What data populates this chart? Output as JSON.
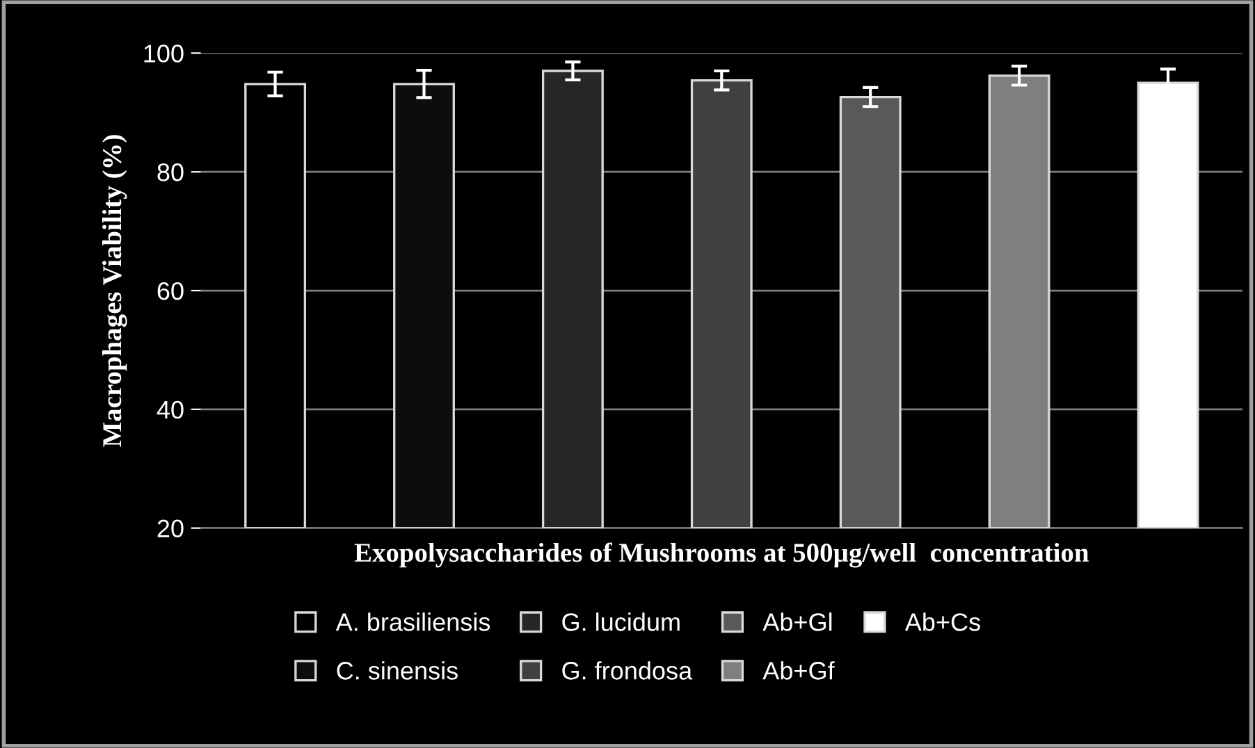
{
  "chart_data": {
    "type": "bar",
    "xlabel": "Exopolysaccharides of Mushrooms at 500µg/well  concentration",
    "ylabel": "Macrophages Viability (%)",
    "categories": [
      null,
      null,
      null,
      null,
      null,
      null,
      null
    ],
    "series": [
      {
        "name": "A. brasiliensis",
        "color": "#000000",
        "values": [
          94.8,
          null,
          null,
          null,
          null,
          null,
          null
        ],
        "errors": [
          2.0,
          null,
          null,
          null,
          null,
          null,
          null
        ]
      },
      {
        "name": "C. sinensis",
        "color": "#0d0d0d",
        "values": [
          null,
          94.8,
          null,
          null,
          null,
          null,
          null
        ],
        "errors": [
          null,
          2.3,
          null,
          null,
          null,
          null,
          null
        ]
      },
      {
        "name": "G. lucidum",
        "color": "#262626",
        "values": [
          null,
          null,
          97.0,
          null,
          null,
          null,
          null
        ],
        "errors": [
          null,
          null,
          1.5,
          null,
          null,
          null,
          null
        ]
      },
      {
        "name": "G. frondosa",
        "color": "#404040",
        "values": [
          null,
          null,
          null,
          95.4,
          null,
          null,
          null
        ],
        "errors": [
          null,
          null,
          null,
          1.6,
          null,
          null,
          null
        ]
      },
      {
        "name": "Ab+Gl",
        "color": "#595959",
        "values": [
          null,
          null,
          null,
          null,
          92.6,
          null,
          null
        ],
        "errors": [
          null,
          null,
          null,
          null,
          1.6,
          null,
          null
        ]
      },
      {
        "name": "Ab+Gf",
        "color": "#7f7f7f",
        "values": [
          null,
          null,
          null,
          null,
          null,
          96.2,
          null
        ],
        "errors": [
          null,
          null,
          null,
          null,
          null,
          1.6,
          null
        ]
      },
      {
        "name": "Ab+Cs",
        "color": "#ffffff",
        "values": [
          null,
          null,
          null,
          null,
          null,
          null,
          95.0
        ],
        "errors": [
          null,
          null,
          null,
          null,
          null,
          null,
          2.3
        ]
      }
    ],
    "ylim": [
      20,
      100
    ],
    "yticks": [
      20,
      40,
      60,
      80,
      100
    ],
    "grid": "y",
    "legend": "bottom"
  }
}
